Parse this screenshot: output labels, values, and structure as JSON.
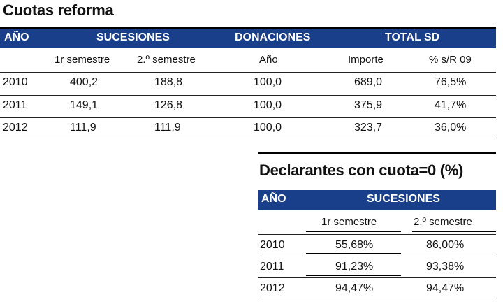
{
  "table1": {
    "title": "Cuotas reforma",
    "headers": {
      "year": "AÑO",
      "sucesiones": "SUCESIONES",
      "donaciones": "DONACIONES",
      "total": "TOTAL SD"
    },
    "subheaders": {
      "sem1": "1r semestre",
      "sem2": "2.º semestre",
      "don_year": "Año",
      "importe": "Importe",
      "pct": "% s/R 09"
    },
    "rows": [
      {
        "year": "2010",
        "sem1": "400,2",
        "sem2": "188,8",
        "don": "100,0",
        "importe": "689,0",
        "pct": "76,5%"
      },
      {
        "year": "2011",
        "sem1": "149,1",
        "sem2": "126,8",
        "don": "100,0",
        "importe": "375,9",
        "pct": "41,7%"
      },
      {
        "year": "2012",
        "sem1": "111,9",
        "sem2": "111,9",
        "don": "100,0",
        "importe": "323,7",
        "pct": "36,0%"
      }
    ]
  },
  "table2": {
    "title": "Declarantes con cuota=0 (%)",
    "headers": {
      "year": "AÑO",
      "sucesiones": "SUCESIONES"
    },
    "subheaders": {
      "sem1": "1r semestre",
      "sem2": "2.º semestre"
    },
    "rows": [
      {
        "year": "2010",
        "sem1": "55,68%",
        "sem2": "86,00%"
      },
      {
        "year": "2011",
        "sem1": "91,23%",
        "sem2": "93,38%"
      },
      {
        "year": "2012",
        "sem1": "94,47%",
        "sem2": "94,47%"
      }
    ]
  },
  "colors": {
    "header_bg": "#1a3f8a",
    "header_text": "#ffffff"
  }
}
